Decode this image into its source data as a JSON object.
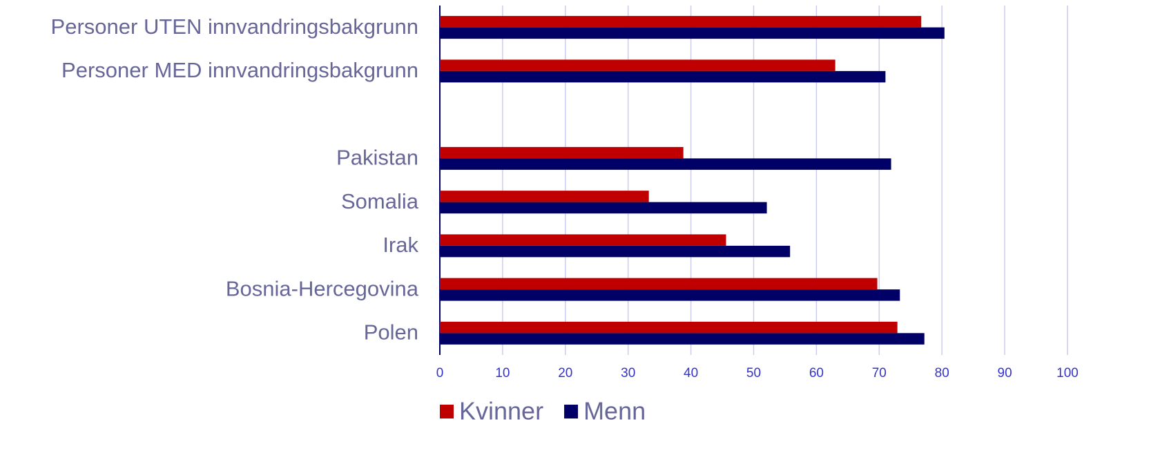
{
  "chart_data": {
    "type": "hbar",
    "categories": [
      "Personer UTEN innvandringsbakgrunn",
      "Personer MED innvandringsbakgrunn",
      null,
      "Pakistan",
      "Somalia",
      "Irak",
      "Bosnia-Hercegovina",
      "Polen"
    ],
    "series": [
      {
        "name": "Kvinner",
        "color": "#c00000",
        "values": [
          76.7,
          63.0,
          null,
          38.8,
          33.3,
          45.6,
          69.7,
          72.9
        ]
      },
      {
        "name": "Menn",
        "color": "#000066",
        "values": [
          80.4,
          71.0,
          null,
          71.9,
          52.1,
          55.8,
          73.3,
          77.2
        ]
      }
    ],
    "xlim": [
      0,
      100
    ],
    "xticks": [
      0,
      10,
      20,
      30,
      40,
      50,
      60,
      70,
      80,
      90,
      100
    ],
    "grid": true,
    "legend": "bottom"
  }
}
